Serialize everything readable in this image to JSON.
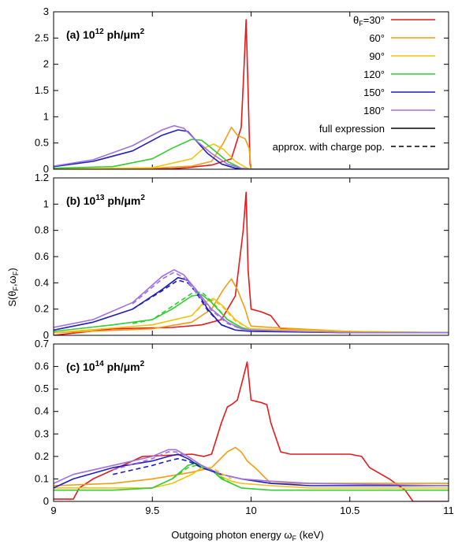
{
  "chart_data": {
    "type": "line",
    "xlabel_text": "Outgoing photon energy ω",
    "xlabel_sub": "F",
    "xlabel_unit": " (keV)",
    "ylabel_text": "S(θ",
    "ylabel_sub1": "F",
    "ylabel_mid": ",ω",
    "ylabel_sub2": "F",
    "ylabel_end": ")",
    "xlim": [
      9,
      11
    ],
    "xticks": [
      "9",
      "9.5",
      "10",
      "10.5",
      "11"
    ],
    "legend": {
      "placement": "top-right",
      "theta_prefix": "θ",
      "theta_sub": "F",
      "entries": [
        "=30°",
        "60°",
        "90°",
        "120°",
        "150°",
        "180°"
      ],
      "full_label": "full expression",
      "approx_label": "approx. with charge pop."
    },
    "colors": [
      "#e41a1c",
      "#f39c12",
      "#f1c40f",
      "#33cc33",
      "#1f1fbf",
      "#a070e0"
    ],
    "panels": [
      {
        "title_pre": "(a) 10",
        "title_exp": "12",
        "title_post": " ph/μm",
        "title_sup2": "2",
        "ylim": [
          0,
          3
        ],
        "yticks": [
          "0",
          "0.5",
          "1",
          "1.5",
          "2",
          "2.5",
          "3"
        ],
        "series": [
          {
            "x": [
              9,
              9.6,
              9.68,
              9.72,
              9.8,
              9.9,
              9.95,
              9.965,
              9.975,
              9.985,
              9.995,
              10.0,
              10.5,
              11
            ],
            "y": [
              0,
              0.01,
              0.03,
              0.05,
              0.08,
              0.2,
              0.8,
              2.0,
              2.85,
              1.5,
              0.1,
              0,
              0,
              0
            ]
          },
          {
            "x": [
              9,
              9.5,
              9.7,
              9.8,
              9.86,
              9.9,
              9.93,
              9.97,
              9.99,
              10.0,
              10.5,
              11
            ],
            "y": [
              0,
              0.02,
              0.06,
              0.15,
              0.5,
              0.8,
              0.65,
              0.58,
              0.4,
              0,
              0,
              0
            ]
          },
          {
            "x": [
              9,
              9.5,
              9.7,
              9.76,
              9.81,
              9.86,
              9.92,
              9.98,
              10.0,
              10.5,
              11
            ],
            "y": [
              0,
              0.03,
              0.2,
              0.4,
              0.48,
              0.38,
              0.15,
              0.02,
              0,
              0,
              0
            ]
          },
          {
            "x": [
              9,
              9.3,
              9.5,
              9.6,
              9.7,
              9.75,
              9.8,
              9.88,
              9.95,
              10.0,
              10.5,
              11
            ],
            "y": [
              0.02,
              0.05,
              0.2,
              0.4,
              0.57,
              0.55,
              0.4,
              0.15,
              0.02,
              0,
              0,
              0
            ]
          },
          {
            "x": [
              9,
              9.2,
              9.4,
              9.55,
              9.63,
              9.68,
              9.72,
              9.78,
              9.85,
              9.92,
              10.0,
              10.5,
              11
            ],
            "y": [
              0.05,
              0.15,
              0.35,
              0.65,
              0.75,
              0.72,
              0.55,
              0.3,
              0.1,
              0.02,
              0,
              0,
              0
            ]
          },
          {
            "x": [
              9,
              9.2,
              9.4,
              9.55,
              9.61,
              9.66,
              9.72,
              9.8,
              9.88,
              9.95,
              10.0,
              10.5,
              11
            ],
            "y": [
              0.06,
              0.18,
              0.45,
              0.75,
              0.83,
              0.78,
              0.55,
              0.3,
              0.1,
              0.02,
              0,
              0,
              0
            ]
          }
        ],
        "dashed": []
      },
      {
        "title_pre": "(b) 10",
        "title_exp": "13",
        "title_post": " ph/μm",
        "title_sup2": "2",
        "ylim": [
          0,
          1.2
        ],
        "yticks": [
          "0",
          "0.2",
          "0.4",
          "0.6",
          "0.8",
          "1",
          "1.2"
        ],
        "series": [
          {
            "x": [
              9,
              9.12,
              9.3,
              9.6,
              9.75,
              9.85,
              9.92,
              9.96,
              9.975,
              9.985,
              10.0,
              10.05,
              10.1,
              10.15,
              10.3,
              10.5,
              11
            ],
            "y": [
              0,
              0.02,
              0.05,
              0.06,
              0.08,
              0.12,
              0.3,
              0.8,
              1.09,
              0.5,
              0.2,
              0.18,
              0.15,
              0.05,
              0.04,
              0.02,
              0.02
            ]
          },
          {
            "x": [
              9,
              9.5,
              9.7,
              9.8,
              9.86,
              9.9,
              9.93,
              9.97,
              9.99,
              10.0,
              10.1,
              10.5,
              11
            ],
            "y": [
              0.02,
              0.05,
              0.1,
              0.2,
              0.35,
              0.43,
              0.35,
              0.2,
              0.1,
              0.07,
              0.06,
              0.03,
              0.02
            ]
          },
          {
            "x": [
              9,
              9.5,
              9.7,
              9.76,
              9.81,
              9.86,
              9.92,
              9.98,
              10.0,
              10.5,
              11
            ],
            "y": [
              0.02,
              0.08,
              0.15,
              0.25,
              0.28,
              0.22,
              0.12,
              0.06,
              0.05,
              0.03,
              0.02
            ]
          },
          {
            "x": [
              9,
              9.3,
              9.5,
              9.6,
              9.7,
              9.75,
              9.8,
              9.88,
              9.95,
              10.0,
              10.2,
              10.5,
              11
            ],
            "y": [
              0.03,
              0.08,
              0.12,
              0.2,
              0.3,
              0.31,
              0.25,
              0.12,
              0.06,
              0.04,
              0.03,
              0.02,
              0.02
            ]
          },
          {
            "x": [
              9,
              9.2,
              9.4,
              9.55,
              9.63,
              9.68,
              9.72,
              9.78,
              9.85,
              9.92,
              10.0,
              10.5,
              11
            ],
            "y": [
              0.04,
              0.1,
              0.2,
              0.35,
              0.44,
              0.42,
              0.35,
              0.2,
              0.08,
              0.04,
              0.03,
              0.02,
              0.02
            ]
          },
          {
            "x": [
              9,
              9.2,
              9.4,
              9.55,
              9.61,
              9.66,
              9.72,
              9.8,
              9.88,
              9.95,
              10.0,
              10.5,
              11
            ],
            "y": [
              0.06,
              0.12,
              0.25,
              0.45,
              0.5,
              0.46,
              0.35,
              0.2,
              0.1,
              0.05,
              0.04,
              0.02,
              0.02
            ]
          }
        ],
        "dashed": [
          {
            "x": [
              9.5,
              9.7,
              9.76,
              9.81,
              9.86,
              9.92,
              9.98
            ],
            "y": [
              0.08,
              0.15,
              0.24,
              0.27,
              0.21,
              0.11,
              0.06
            ]
          },
          {
            "x": [
              9.4,
              9.5,
              9.6,
              9.7,
              9.75,
              9.8,
              9.88,
              9.95
            ],
            "y": [
              0.09,
              0.12,
              0.22,
              0.32,
              0.33,
              0.26,
              0.12,
              0.06
            ]
          },
          {
            "x": [
              9.4,
              9.55,
              9.63,
              9.68,
              9.72,
              9.78,
              9.85,
              9.92
            ],
            "y": [
              0.2,
              0.34,
              0.42,
              0.4,
              0.33,
              0.19,
              0.08,
              0.04
            ]
          },
          {
            "x": [
              9.4,
              9.55,
              9.61,
              9.66,
              9.72,
              9.8,
              9.88,
              9.95
            ],
            "y": [
              0.24,
              0.43,
              0.48,
              0.44,
              0.33,
              0.19,
              0.09,
              0.05
            ]
          }
        ]
      },
      {
        "title_pre": "(c) 10",
        "title_exp": "14",
        "title_post": " ph/μm",
        "title_sup2": "2",
        "ylim": [
          0,
          0.7
        ],
        "yticks": [
          "0",
          "0.1",
          "0.2",
          "0.3",
          "0.4",
          "0.5",
          "0.6",
          "0.7"
        ],
        "series": [
          {
            "x": [
              9,
              9.1,
              9.13,
              9.2,
              9.45,
              9.7,
              9.76,
              9.8,
              9.85,
              9.88,
              9.9,
              9.93,
              9.96,
              9.98,
              10.0,
              10.05,
              10.08,
              10.1,
              10.15,
              10.2,
              10.3,
              10.5,
              10.56,
              10.6,
              10.7,
              10.78,
              10.82,
              10.9,
              11
            ],
            "y": [
              0.01,
              0.01,
              0.06,
              0.1,
              0.2,
              0.21,
              0.2,
              0.21,
              0.35,
              0.42,
              0.43,
              0.45,
              0.55,
              0.62,
              0.45,
              0.44,
              0.43,
              0.35,
              0.22,
              0.21,
              0.21,
              0.21,
              0.2,
              0.15,
              0.1,
              0.05,
              0,
              0,
              0
            ]
          },
          {
            "x": [
              9,
              9.3,
              9.5,
              9.7,
              9.8,
              9.88,
              9.92,
              9.95,
              9.98,
              10.02,
              10.1,
              10.3,
              10.6,
              11
            ],
            "y": [
              0.07,
              0.08,
              0.1,
              0.13,
              0.15,
              0.22,
              0.24,
              0.22,
              0.18,
              0.15,
              0.08,
              0.08,
              0.08,
              0.08
            ]
          },
          {
            "x": [
              9,
              9.4,
              9.5,
              9.6,
              9.7,
              9.75,
              9.8,
              9.85,
              9.9,
              9.95,
              10.1,
              10.3,
              11
            ],
            "y": [
              0.06,
              0.06,
              0.06,
              0.08,
              0.12,
              0.15,
              0.14,
              0.11,
              0.09,
              0.08,
              0.07,
              0.06,
              0.06
            ]
          },
          {
            "x": [
              9,
              9.3,
              9.5,
              9.6,
              9.68,
              9.72,
              9.8,
              9.85,
              9.9,
              9.95,
              10.1,
              10.3,
              11
            ],
            "y": [
              0.05,
              0.05,
              0.06,
              0.1,
              0.16,
              0.17,
              0.14,
              0.1,
              0.08,
              0.06,
              0.05,
              0.05,
              0.05
            ]
          },
          {
            "x": [
              9,
              9.1,
              9.3,
              9.5,
              9.58,
              9.63,
              9.68,
              9.75,
              9.85,
              9.95,
              10.1,
              10.3,
              11
            ],
            "y": [
              0.06,
              0.1,
              0.15,
              0.18,
              0.2,
              0.21,
              0.19,
              0.15,
              0.12,
              0.1,
              0.08,
              0.07,
              0.07
            ]
          },
          {
            "x": [
              9,
              9.1,
              9.3,
              9.5,
              9.58,
              9.62,
              9.68,
              9.75,
              9.85,
              9.95,
              10.1,
              10.3,
              11
            ],
            "y": [
              0.08,
              0.12,
              0.16,
              0.2,
              0.23,
              0.23,
              0.2,
              0.16,
              0.12,
              0.1,
              0.09,
              0.08,
              0.07
            ]
          }
        ],
        "dashed": [
          {
            "x": [
              9.6,
              9.7,
              9.75,
              9.8,
              9.86,
              9.9
            ],
            "y": [
              0.08,
              0.12,
              0.15,
              0.15,
              0.12,
              0.1
            ]
          },
          {
            "x": [
              9.6,
              9.68,
              9.72,
              9.8,
              9.86,
              9.9
            ],
            "y": [
              0.1,
              0.15,
              0.16,
              0.14,
              0.1,
              0.08
            ]
          },
          {
            "x": [
              9.3,
              9.5,
              9.58,
              9.63,
              9.68,
              9.75,
              9.85
            ],
            "y": [
              0.12,
              0.16,
              0.18,
              0.19,
              0.18,
              0.15,
              0.12
            ]
          },
          {
            "x": [
              9.3,
              9.5,
              9.58,
              9.62,
              9.68,
              9.75,
              9.85
            ],
            "y": [
              0.14,
              0.19,
              0.22,
              0.22,
              0.2,
              0.16,
              0.12
            ]
          }
        ]
      }
    ]
  }
}
